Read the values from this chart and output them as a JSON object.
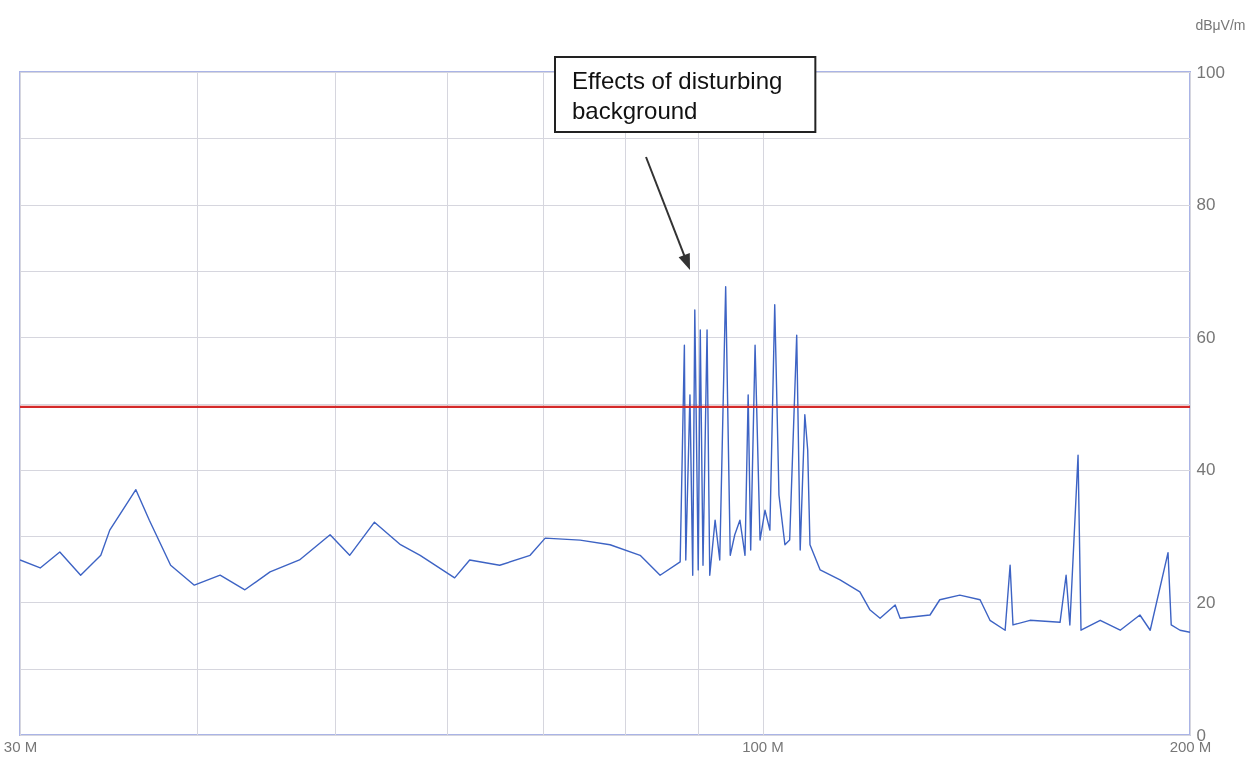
{
  "chart_data": {
    "type": "line",
    "ylabel": "dBμV/m",
    "log": "x",
    "grid": true,
    "xlim": [
      30,
      200
    ],
    "xticks": [
      {
        "value": 30,
        "label": "30 M"
      },
      {
        "value": 40,
        "label": null
      },
      {
        "value": 50,
        "label": null
      },
      {
        "value": 60,
        "label": null
      },
      {
        "value": 70,
        "label": null
      },
      {
        "value": 80,
        "label": null
      },
      {
        "value": 90,
        "label": null
      },
      {
        "value": 100,
        "label": "100 M"
      },
      {
        "value": 200,
        "label": "200 M"
      }
    ],
    "ylim": [
      0,
      100
    ],
    "yticks": [
      0,
      {
        "value": 10,
        "label": null
      },
      20,
      {
        "value": 30,
        "label": null
      },
      40,
      {
        "value": 50,
        "label": null
      },
      60,
      {
        "value": 70,
        "label": null
      },
      80,
      {
        "value": 90,
        "label": null
      },
      100
    ],
    "x": [
      30.0,
      31.0,
      32.0,
      33.1,
      34.2,
      34.7,
      36.2,
      37.0,
      38.3,
      39.8,
      41.5,
      43.2,
      45.0,
      47.2,
      49.6,
      51.2,
      53.3,
      55.6,
      57.4,
      60.7,
      62.2,
      65.3,
      68.6,
      70.3,
      74.4,
      78.1,
      82.0,
      84.7,
      87.5,
      88.1,
      88.3,
      88.9,
      89.3,
      89.6,
      90.1,
      90.4,
      90.8,
      91.4,
      91.8,
      92.6,
      93.3,
      94.2,
      94.9,
      95.6,
      96.4,
      97.2,
      97.7,
      98.1,
      98.8,
      99.6,
      100.4,
      101.2,
      102.0,
      102.7,
      103.7,
      104.5,
      105.7,
      106.3,
      107.1,
      107.6,
      108.0,
      109.8,
      113.4,
      117.1,
      119.0,
      121.0,
      124.0,
      125.0,
      131.2,
      133.3,
      137.7,
      142.3,
      144.6,
      148.2,
      149.4,
      150.1,
      154.3,
      162.0,
      163.6,
      164.6,
      166.8,
      167.6,
      172.9,
      178.6,
      184.4,
      187.5,
      193.0,
      194.0,
      196.8,
      200.0
    ],
    "series": [
      {
        "color": "#3d63c4",
        "values": [
          26.4,
          25.2,
          27.6,
          24.1,
          27.1,
          30.9,
          37.0,
          32.4,
          25.6,
          22.6,
          24.1,
          21.9,
          24.6,
          26.4,
          30.2,
          27.1,
          32.1,
          28.7,
          27.1,
          23.7,
          26.4,
          25.6,
          27.1,
          29.7,
          29.4,
          28.7,
          27.1,
          24.1,
          26.1,
          58.8,
          26.4,
          51.3,
          24.1,
          64.1,
          24.9,
          61.1,
          25.6,
          61.1,
          24.1,
          32.4,
          26.4,
          67.6,
          27.1,
          30.2,
          32.4,
          27.1,
          51.3,
          27.9,
          58.8,
          29.4,
          33.9,
          30.9,
          64.9,
          36.2,
          28.7,
          29.4,
          60.3,
          27.9,
          48.3,
          43.0,
          28.7,
          24.9,
          23.4,
          21.6,
          18.9,
          17.6,
          19.6,
          17.6,
          18.1,
          20.4,
          21.1,
          20.4,
          17.3,
          15.8,
          25.6,
          16.6,
          17.3,
          17.0,
          24.1,
          16.6,
          42.2,
          15.8,
          17.3,
          15.8,
          18.1,
          15.8,
          27.5,
          16.6,
          15.8,
          15.5
        ]
      }
    ],
    "ref_lines": [
      {
        "axis": "y",
        "value": 49.5,
        "color": "#d42a2a"
      }
    ],
    "annotations": [
      "Effects of disturbing background"
    ]
  }
}
